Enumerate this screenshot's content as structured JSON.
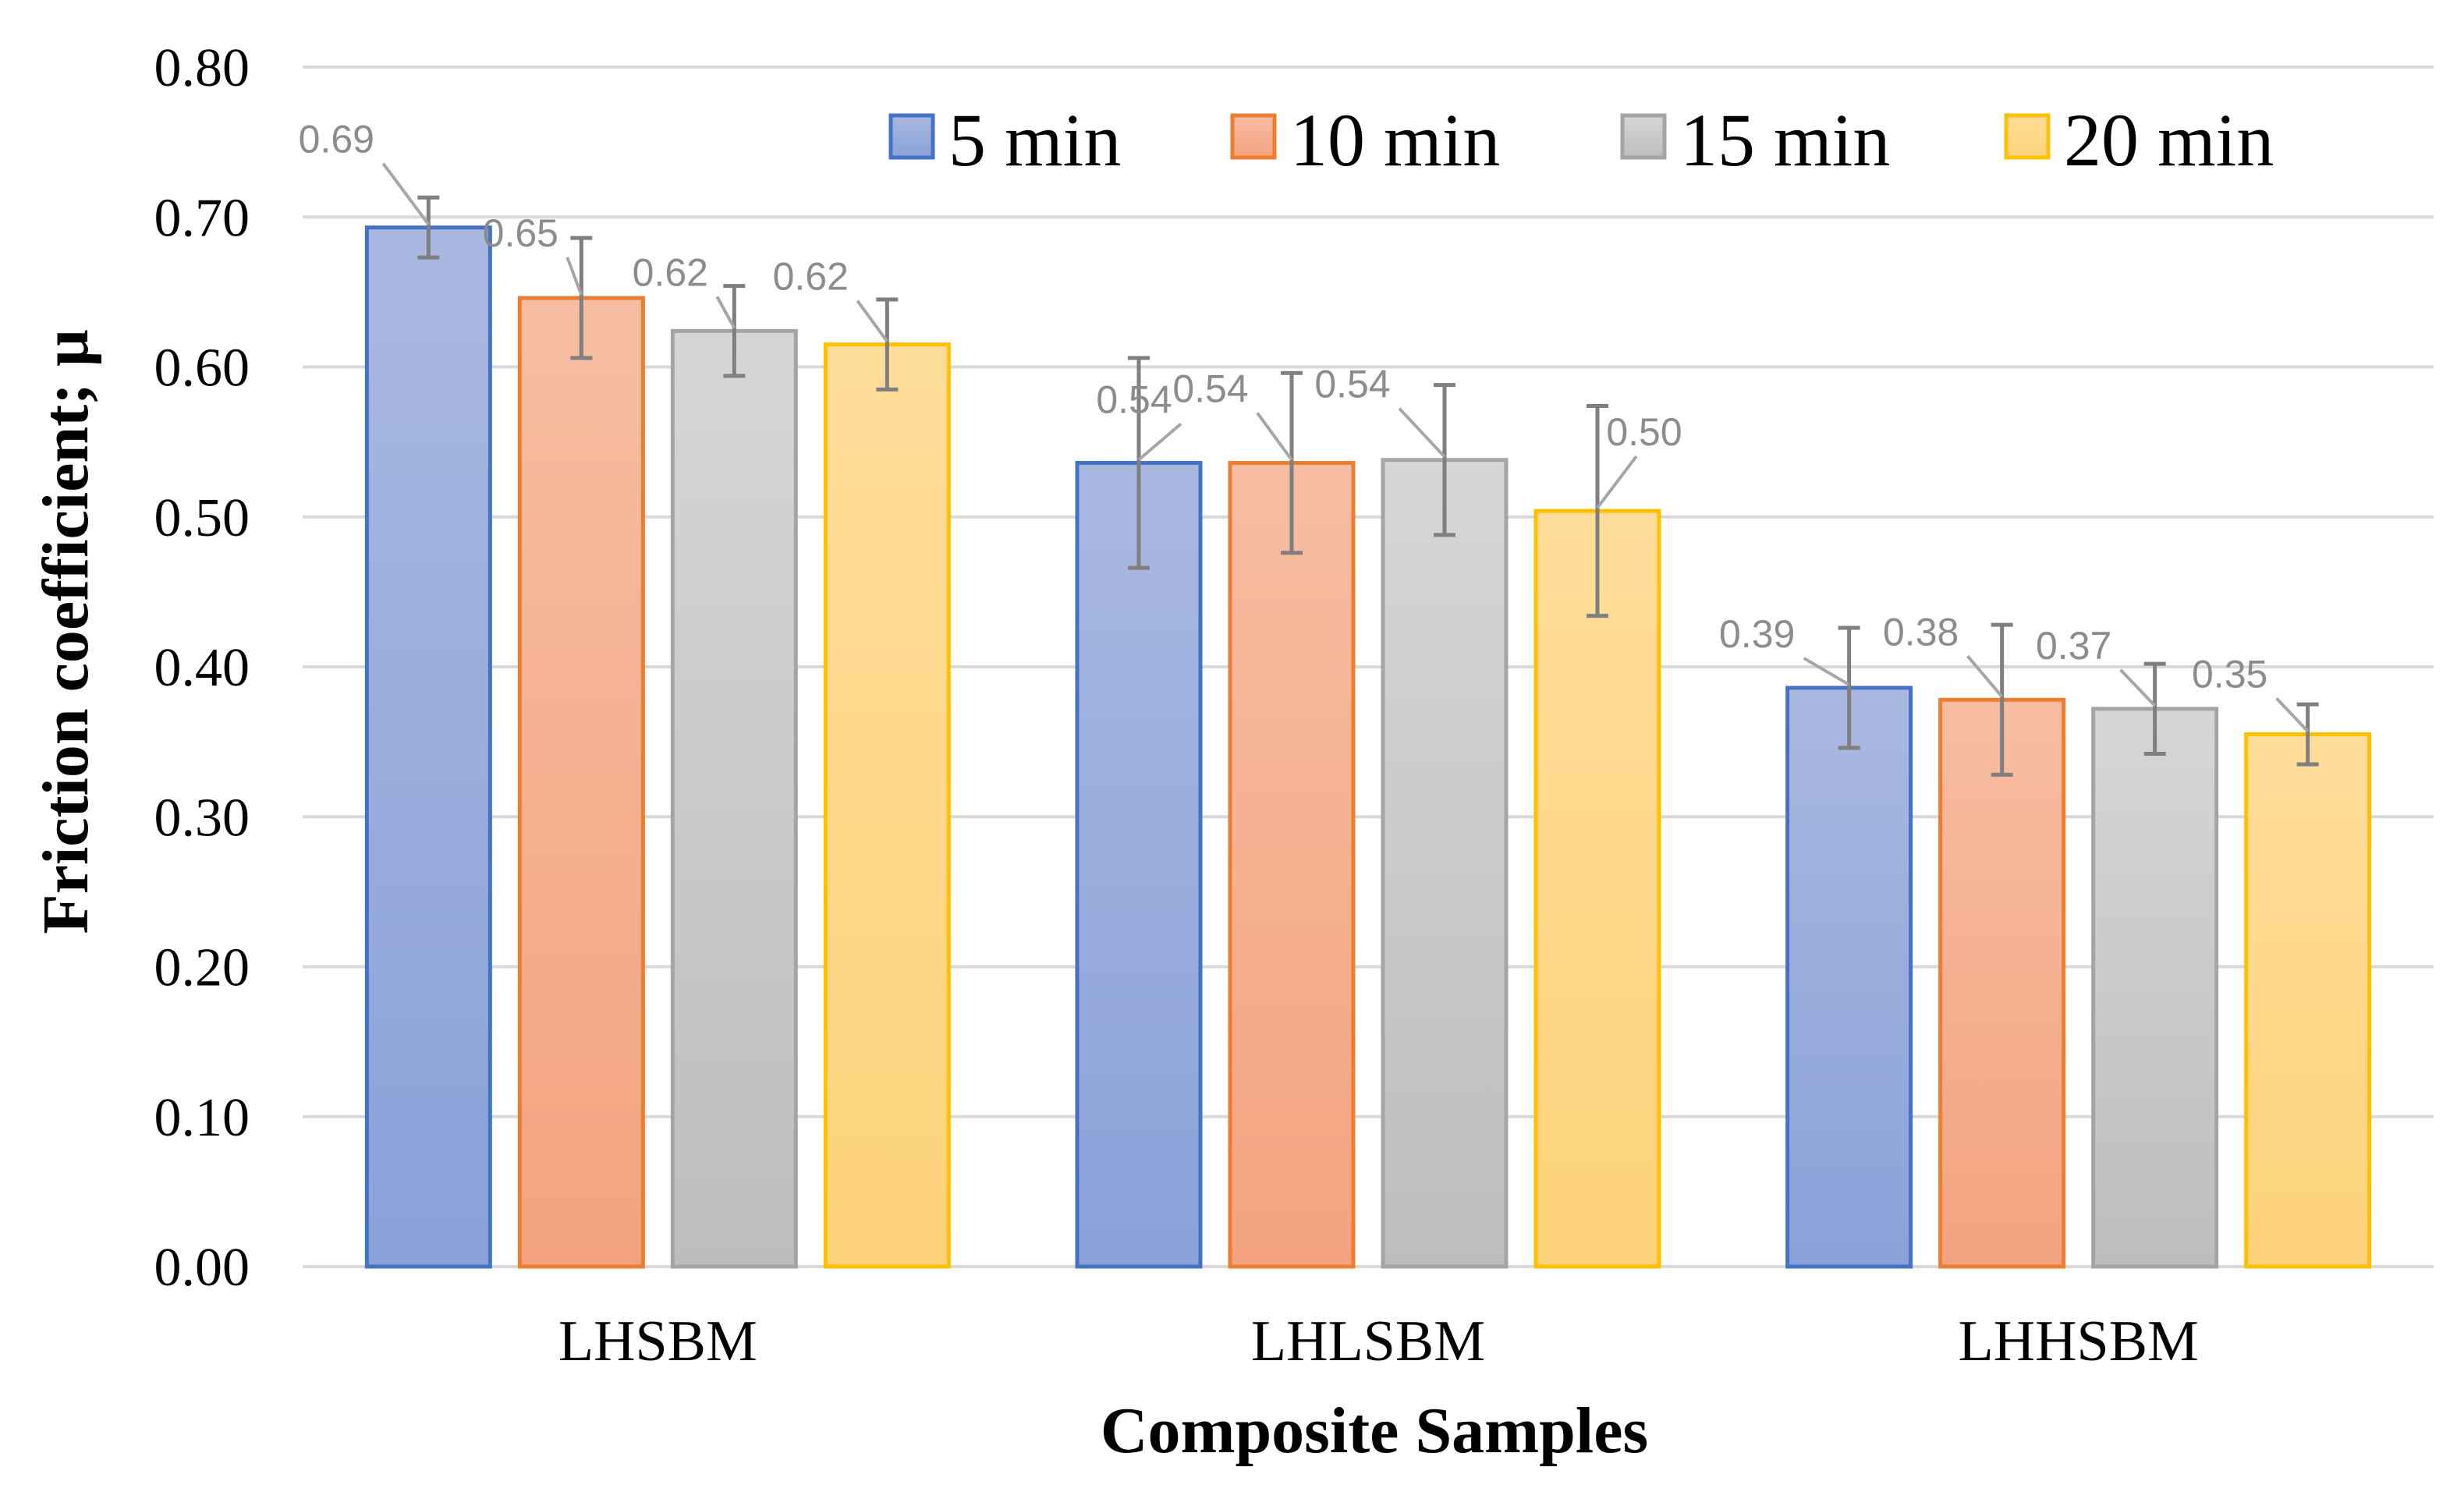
{
  "chart_data": {
    "type": "bar",
    "title": "",
    "xlabel": "Composite Samples",
    "ylabel": "Friction coefficient; μ",
    "ylim": [
      0,
      0.8
    ],
    "yticks": [
      "0.00",
      "0.10",
      "0.20",
      "0.30",
      "0.40",
      "0.50",
      "0.60",
      "0.70",
      "0.80"
    ],
    "grid": true,
    "legend_position": "top-right",
    "categories": [
      "LHSBM",
      "LHLSBM",
      "LHHSBM"
    ],
    "series": [
      {
        "name": "5 min",
        "values": [
          0.693,
          0.536,
          0.386
        ],
        "errors": [
          0.02,
          0.07,
          0.04
        ],
        "labels": [
          "0.69",
          "0.54",
          "0.39"
        ],
        "color": "#4472C4",
        "fill_top": "#A9B8E0",
        "fill_bottom": "#8AA1D9"
      },
      {
        "name": "10 min",
        "values": [
          0.646,
          0.536,
          0.378
        ],
        "errors": [
          0.04,
          0.06,
          0.05
        ],
        "labels": [
          "0.65",
          "0.54",
          "0.38"
        ],
        "color": "#ED7D31",
        "fill_top": "#F6BDA2",
        "fill_bottom": "#F4A37E"
      },
      {
        "name": "15 min",
        "values": [
          0.624,
          0.538,
          0.372
        ],
        "errors": [
          0.03,
          0.05,
          0.03
        ],
        "labels": [
          "0.62",
          "0.54",
          "0.37"
        ],
        "color": "#A5A5A5",
        "fill_top": "#D6D6D6",
        "fill_bottom": "#BDBDBD"
      },
      {
        "name": "20 min",
        "values": [
          0.615,
          0.504,
          0.355
        ],
        "errors": [
          0.03,
          0.07,
          0.02
        ],
        "labels": [
          "0.62",
          "0.50",
          "0.35"
        ],
        "color": "#FFC000",
        "fill_top": "#FEDD9A",
        "fill_bottom": "#FDD27A"
      }
    ]
  }
}
